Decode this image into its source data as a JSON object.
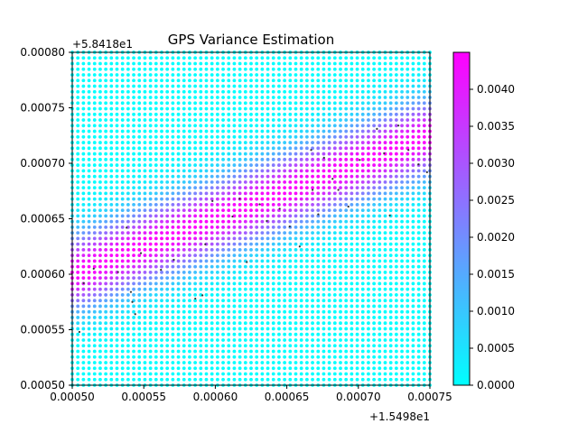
{
  "chart_data": {
    "type": "scatter",
    "title": "GPS Variance Estimation",
    "xlabel": "",
    "ylabel": "",
    "x_offset_label": "+1.5498e1",
    "y_offset_label": "+5.8418e1",
    "xlim": [
      0.0005,
      0.00075
    ],
    "ylim": [
      0.0005,
      0.0008
    ],
    "x_ticks": [
      "0.00050",
      "0.00055",
      "0.00060",
      "0.00065",
      "0.00070",
      "0.00075"
    ],
    "x_tick_values": [
      0.0005,
      0.00055,
      0.0006,
      0.00065,
      0.0007,
      0.00075
    ],
    "y_ticks": [
      "0.00050",
      "0.00055",
      "0.00060",
      "0.00065",
      "0.00070",
      "0.00075",
      "0.00080"
    ],
    "y_tick_values": [
      0.0005,
      0.00055,
      0.0006,
      0.00065,
      0.0007,
      0.00075,
      0.0008
    ],
    "grid": false,
    "colormap": "cool",
    "colorbar": {
      "range": [
        0.0,
        0.0045
      ],
      "ticks": [
        "0.0000",
        "0.0005",
        "0.0010",
        "0.0015",
        "0.0020",
        "0.0025",
        "0.0030",
        "0.0035",
        "0.0040"
      ],
      "tick_values": [
        0.0,
        0.0005,
        0.001,
        0.0015,
        0.002,
        0.0025,
        0.003,
        0.0035,
        0.004
      ],
      "low_color": "#00ffff",
      "high_color": "#ff00ff"
    },
    "grid_points": {
      "x_start": 0.0005,
      "x_end": 0.00075,
      "x_count": 65,
      "y_start": 0.0005,
      "y_end": 0.0008,
      "y_count": 60
    },
    "variance_band": {
      "from": [
        0.0005,
        0.0006
      ],
      "to": [
        0.00075,
        0.000725
      ],
      "peak_variance": 0.0045,
      "width": 2.2e-05
    },
    "sample_points": [
      [
        0.000505,
        0.000548
      ],
      [
        0.000508,
        0.000592
      ],
      [
        0.000515,
        0.000605
      ],
      [
        0.000532,
        0.000602
      ],
      [
        0.000538,
        0.000642
      ],
      [
        0.000541,
        0.000584
      ],
      [
        0.000542,
        0.000575
      ],
      [
        0.000544,
        0.000564
      ],
      [
        0.000548,
        0.000619
      ],
      [
        0.000562,
        0.000604
      ],
      [
        0.000571,
        0.000613
      ],
      [
        0.000586,
        0.000578
      ],
      [
        0.000591,
        0.000581
      ],
      [
        0.000593,
        0.000627
      ],
      [
        0.000598,
        0.000666
      ],
      [
        0.000612,
        0.000652
      ],
      [
        0.000617,
        0.000668
      ],
      [
        0.000622,
        0.000611
      ],
      [
        0.000631,
        0.000663
      ],
      [
        0.000636,
        0.000648
      ],
      [
        0.000645,
        0.000659
      ],
      [
        0.000652,
        0.000643
      ],
      [
        0.000659,
        0.000625
      ],
      [
        0.000667,
        0.000712
      ],
      [
        0.000668,
        0.000676
      ],
      [
        0.000672,
        0.000654
      ],
      [
        0.000676,
        0.000705
      ],
      [
        0.000682,
        0.000686
      ],
      [
        0.000686,
        0.000676
      ],
      [
        0.000693,
        0.000661
      ],
      [
        0.000701,
        0.000703
      ],
      [
        0.000713,
        0.000731
      ],
      [
        0.000718,
        0.000709
      ],
      [
        0.000722,
        0.000653
      ],
      [
        0.000728,
        0.000734
      ],
      [
        0.000735,
        0.000712
      ],
      [
        0.000742,
        0.000699
      ],
      [
        0.000748,
        0.000692
      ]
    ]
  }
}
